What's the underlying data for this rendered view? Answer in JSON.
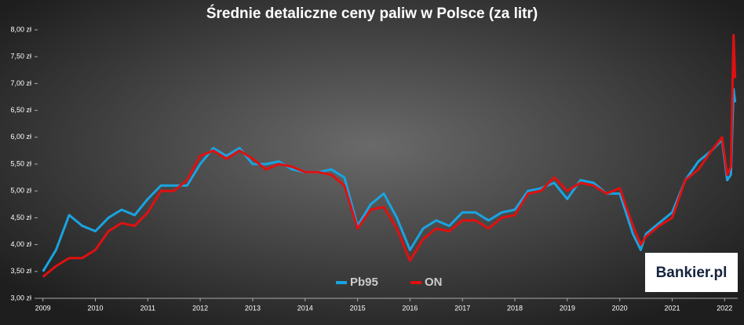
{
  "chart_data": {
    "type": "line",
    "title": "Średnie detaliczne ceny paliw w Polsce (za litr)",
    "x": [
      2009.0,
      2009.25,
      2009.5,
      2009.75,
      2010.0,
      2010.25,
      2010.5,
      2010.75,
      2011.0,
      2011.25,
      2011.5,
      2011.75,
      2012.0,
      2012.25,
      2012.5,
      2012.75,
      2013.0,
      2013.25,
      2013.5,
      2013.75,
      2014.0,
      2014.25,
      2014.5,
      2014.75,
      2015.0,
      2015.25,
      2015.5,
      2015.75,
      2016.0,
      2016.25,
      2016.5,
      2016.75,
      2017.0,
      2017.25,
      2017.5,
      2017.75,
      2018.0,
      2018.25,
      2018.5,
      2018.75,
      2019.0,
      2019.25,
      2019.5,
      2019.75,
      2020.0,
      2020.25,
      2020.4,
      2020.5,
      2020.75,
      2021.0,
      2021.25,
      2021.5,
      2021.75,
      2021.95,
      2022.05,
      2022.12,
      2022.17,
      2022.2
    ],
    "series": [
      {
        "name": "Pb95",
        "color": "#1aa3e0",
        "values": [
          3.5,
          3.9,
          4.55,
          4.35,
          4.25,
          4.5,
          4.65,
          4.55,
          4.85,
          5.1,
          5.1,
          5.1,
          5.5,
          5.8,
          5.65,
          5.8,
          5.5,
          5.5,
          5.55,
          5.4,
          5.35,
          5.35,
          5.4,
          5.25,
          4.35,
          4.75,
          4.95,
          4.5,
          3.9,
          4.3,
          4.45,
          4.35,
          4.6,
          4.6,
          4.45,
          4.6,
          4.65,
          5.0,
          5.05,
          5.15,
          4.85,
          5.2,
          5.15,
          4.95,
          4.95,
          4.2,
          3.9,
          4.2,
          4.4,
          4.6,
          5.2,
          5.55,
          5.75,
          5.95,
          5.2,
          5.3,
          6.9,
          6.65
        ]
      },
      {
        "name": "ON",
        "color": "#e01010",
        "values": [
          3.4,
          3.6,
          3.75,
          3.75,
          3.9,
          4.25,
          4.4,
          4.35,
          4.6,
          5.0,
          5.0,
          5.2,
          5.65,
          5.75,
          5.6,
          5.75,
          5.6,
          5.4,
          5.5,
          5.45,
          5.35,
          5.35,
          5.3,
          5.1,
          4.3,
          4.65,
          4.7,
          4.3,
          3.7,
          4.1,
          4.3,
          4.25,
          4.45,
          4.45,
          4.3,
          4.5,
          4.55,
          4.95,
          5.0,
          5.25,
          5.0,
          5.15,
          5.1,
          4.95,
          5.05,
          4.35,
          4.0,
          4.15,
          4.35,
          4.5,
          5.2,
          5.4,
          5.75,
          6.0,
          5.3,
          5.45,
          7.9,
          7.1
        ]
      }
    ],
    "xlim": [
      2008.9,
      2022.25
    ],
    "xticks": [
      2009,
      2010,
      2011,
      2012,
      2013,
      2014,
      2015,
      2016,
      2017,
      2018,
      2019,
      2020,
      2021,
      2022
    ],
    "ylim": [
      3,
      8
    ],
    "yticks": [
      {
        "value": 3,
        "label": "3,00 zł"
      },
      {
        "value": 3.5,
        "label": "3,50 zł"
      },
      {
        "value": 4,
        "label": "4,00 zł"
      },
      {
        "value": 4.5,
        "label": "4,50 zł"
      },
      {
        "value": 5,
        "label": "5,00 zł"
      },
      {
        "value": 5.5,
        "label": "5,50 zł"
      },
      {
        "value": 6,
        "label": "6,00 zł"
      },
      {
        "value": 6.5,
        "label": "6,50 zł"
      },
      {
        "value": 7,
        "label": "7,00 zł"
      },
      {
        "value": 7.5,
        "label": "7,50 zł"
      },
      {
        "value": 8,
        "label": "8,00 zł"
      }
    ],
    "legend": "bottom",
    "logo": "Bankier.pl"
  }
}
